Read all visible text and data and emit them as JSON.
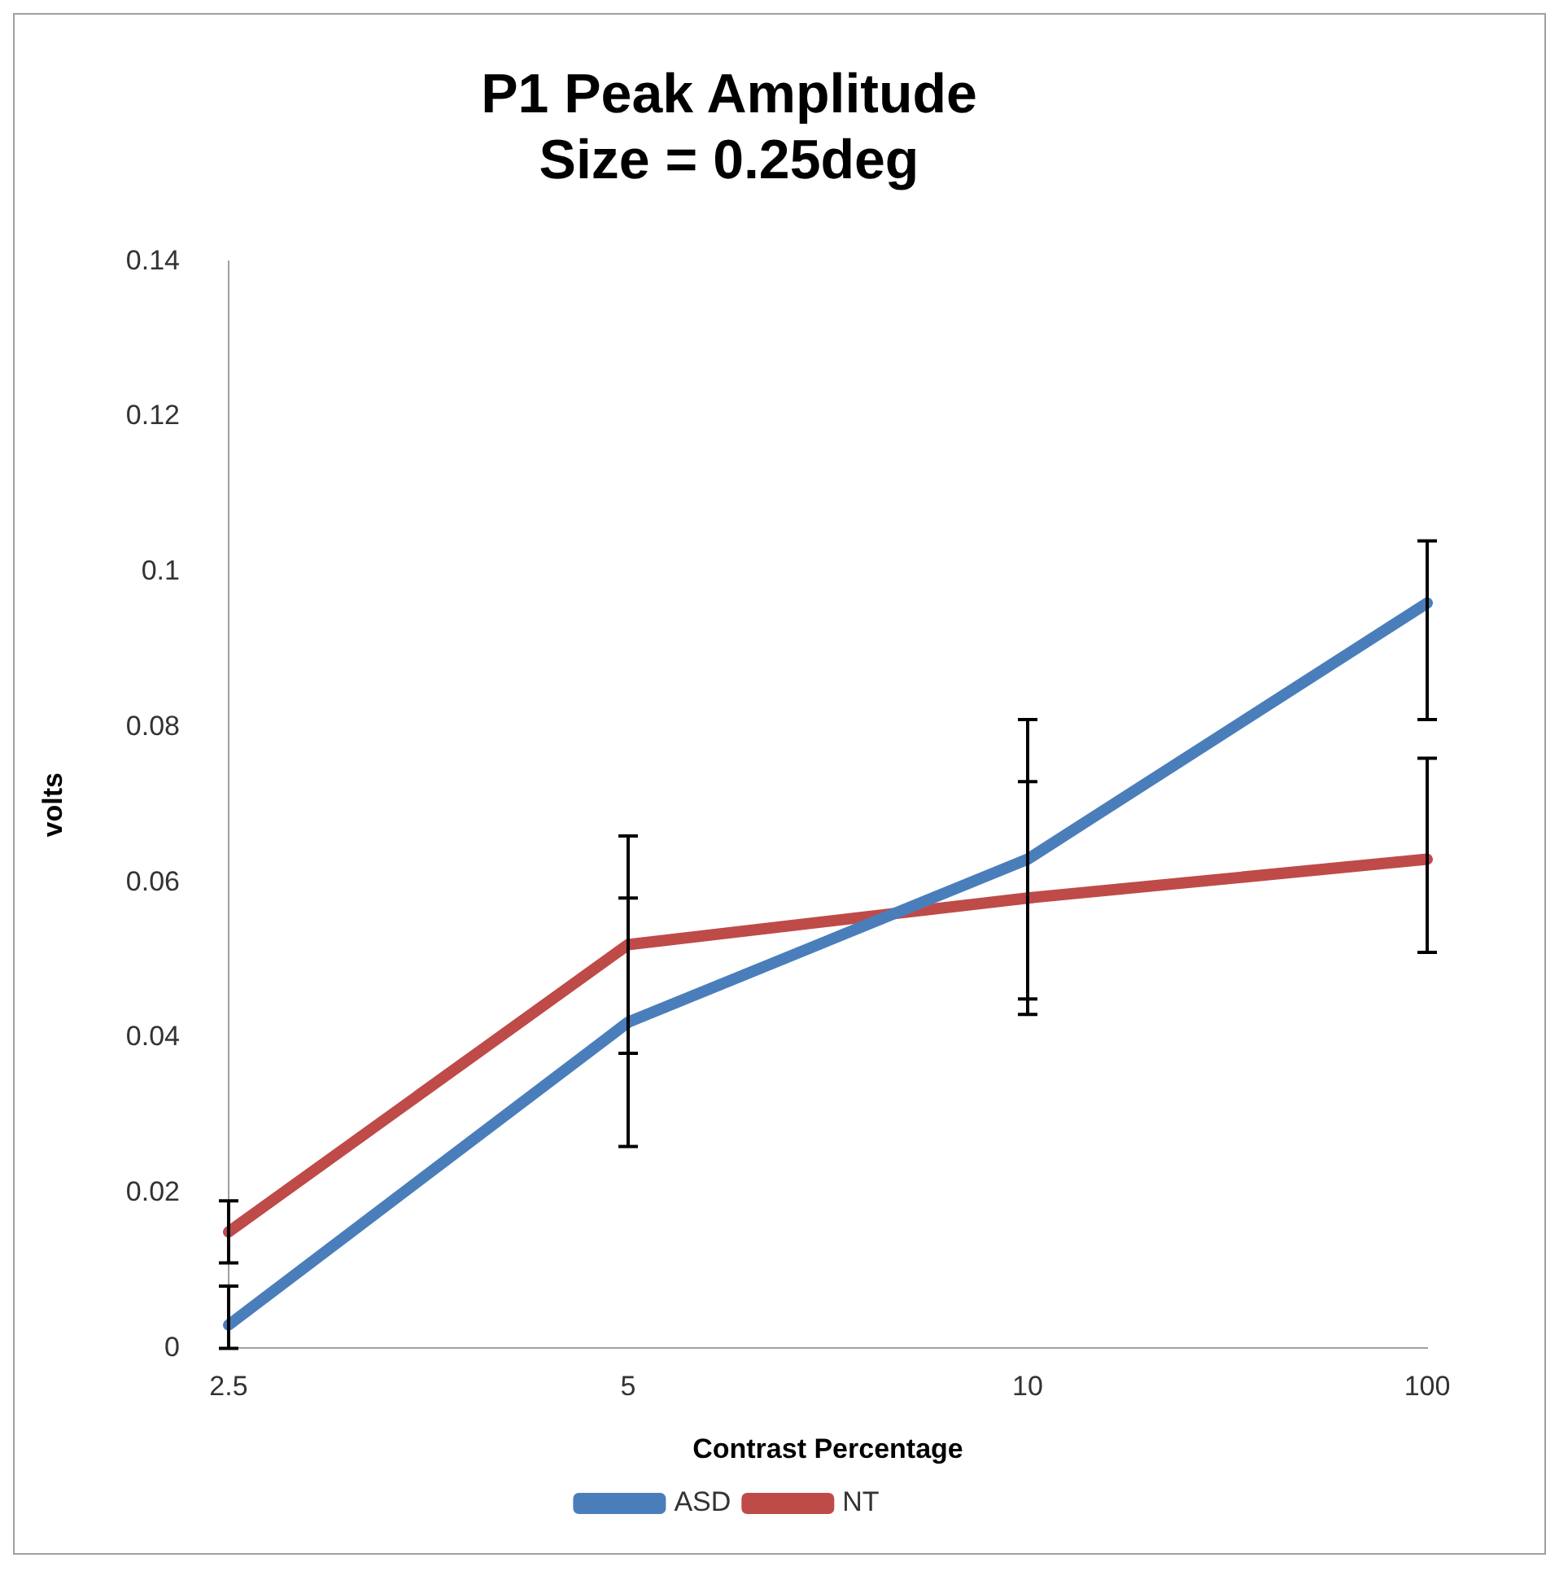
{
  "chart_data": {
    "type": "line",
    "title": [
      "P1 Peak Amplitude",
      "Size = 0.25deg"
    ],
    "xlabel": "Contrast Percentage",
    "ylabel": "volts",
    "categories": [
      "2.5",
      "5",
      "10",
      "100"
    ],
    "series": [
      {
        "name": "ASD",
        "color": "#4a7ebb",
        "values": [
          0.003,
          0.042,
          0.063,
          0.096
        ],
        "errors": [
          [
            0,
            0.008
          ],
          [
            0.026,
            0.058
          ],
          [
            0.045,
            0.081
          ],
          [
            0.081,
            0.104
          ]
        ]
      },
      {
        "name": "NT",
        "color": "#be4b48",
        "values": [
          0.015,
          0.052,
          0.058,
          0.063
        ],
        "errors": [
          [
            0.011,
            0.019
          ],
          [
            0.038,
            0.066
          ],
          [
            0.043,
            0.073
          ],
          [
            0.051,
            0.076
          ]
        ]
      }
    ],
    "ylim": [
      0,
      0.14
    ],
    "yticks": [
      0,
      0.02,
      0.04,
      0.06,
      0.08,
      0.1,
      0.12,
      0.14
    ],
    "grid": false,
    "legend": "bottom",
    "marker": "none",
    "line_style": "solid"
  }
}
